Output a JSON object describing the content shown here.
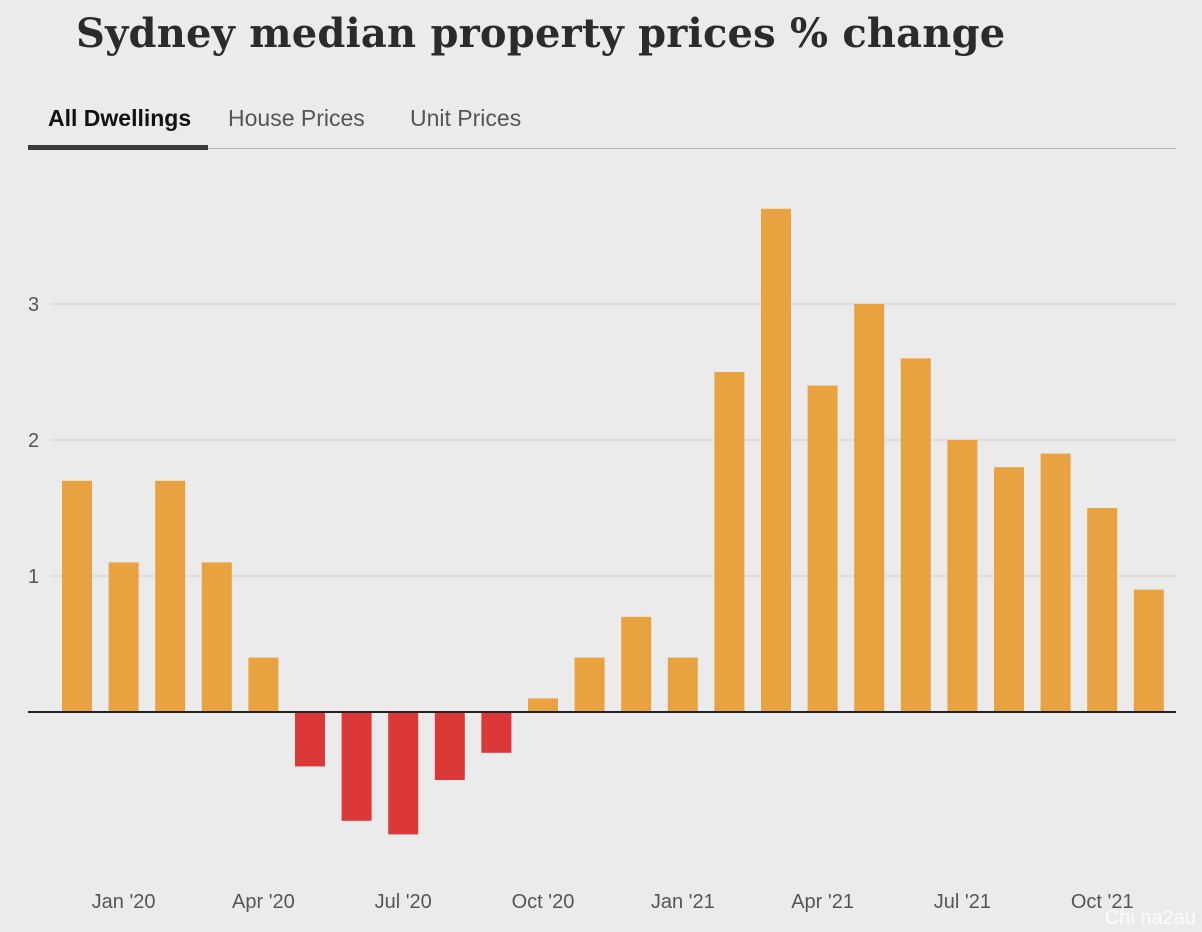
{
  "title": "Sydney median property prices % change",
  "tabs": [
    {
      "label": "All Dwellings",
      "active": true
    },
    {
      "label": "House Prices",
      "active": false
    },
    {
      "label": "Unit Prices",
      "active": false
    }
  ],
  "watermark": "Chi na2au",
  "colors": {
    "positive": "#e8a23f",
    "negative": "#dc3838"
  },
  "chart_data": {
    "type": "bar",
    "title": "Sydney median property prices % change",
    "categories": [
      "Dec '19",
      "Jan '20",
      "Feb '20",
      "Mar '20",
      "Apr '20",
      "May '20",
      "Jun '20",
      "Jul '20",
      "Aug '20",
      "Sep '20",
      "Oct '20",
      "Nov '20",
      "Dec '20",
      "Jan '21",
      "Feb '21",
      "Mar '21",
      "Apr '21",
      "May '21",
      "Jun '21",
      "Jul '21",
      "Aug '21",
      "Sep '21",
      "Oct '21",
      "Nov '21"
    ],
    "values": [
      1.7,
      1.1,
      1.7,
      1.1,
      0.4,
      -0.4,
      -0.8,
      -0.9,
      -0.5,
      -0.3,
      0.1,
      0.4,
      0.7,
      0.4,
      2.5,
      3.7,
      2.4,
      3.0,
      2.6,
      2.0,
      1.8,
      1.9,
      1.5,
      0.9
    ],
    "xticks": [
      {
        "index": 1,
        "label": "Jan '20"
      },
      {
        "index": 4,
        "label": "Apr '20"
      },
      {
        "index": 7,
        "label": "Jul '20"
      },
      {
        "index": 10,
        "label": "Oct '20"
      },
      {
        "index": 13,
        "label": "Jan '21"
      },
      {
        "index": 16,
        "label": "Apr '21"
      },
      {
        "index": 19,
        "label": "Jul '21"
      },
      {
        "index": 22,
        "label": "Oct '21"
      }
    ],
    "yticks": [
      1,
      2,
      3
    ],
    "ylim": [
      -1.2,
      4.0
    ],
    "grid": true,
    "xlabel": "",
    "ylabel": ""
  }
}
